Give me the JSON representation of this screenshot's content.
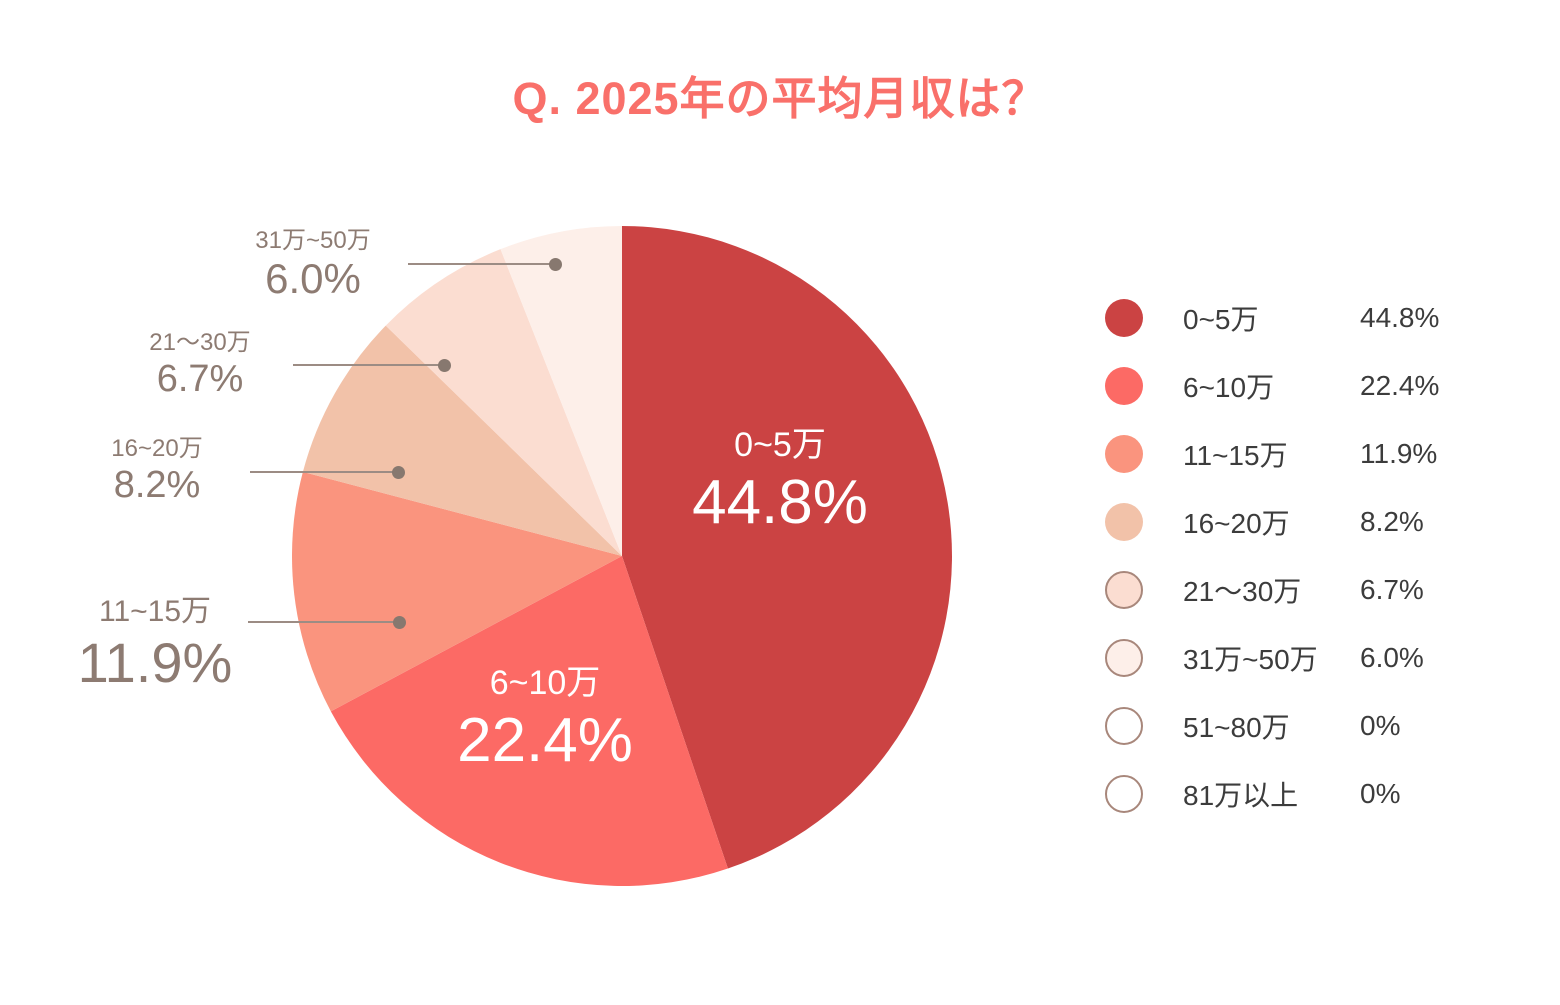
{
  "title": "Q. 2025年の平均月収は？",
  "accent_color": "#F9706A",
  "callout_text_color": "#8D7B72",
  "leader_line_color": "#9C8C84",
  "chart_data": {
    "type": "pie",
    "title": "Q. 2025年の平均月収は？",
    "start_angle_deg": 0,
    "direction": "clockwise",
    "legend_position": "right",
    "series": [
      {
        "label": "0~5万",
        "value": 44.8,
        "pct_text": "44.8%",
        "color": "#CB4343",
        "label_placement": "inside"
      },
      {
        "label": "6~10万",
        "value": 22.4,
        "pct_text": "22.4%",
        "color": "#FC6A65",
        "label_placement": "inside"
      },
      {
        "label": "11~15万",
        "value": 11.9,
        "pct_text": "11.9%",
        "color": "#FA947E",
        "label_placement": "outside"
      },
      {
        "label": "16~20万",
        "value": 8.2,
        "pct_text": "8.2%",
        "color": "#F2C2A9",
        "label_placement": "outside"
      },
      {
        "label": "21〜30万",
        "value": 6.7,
        "pct_text": "6.7%",
        "color": "#FBDDD1",
        "label_placement": "outside"
      },
      {
        "label": "31万~50万",
        "value": 6.0,
        "pct_text": "6.0%",
        "color": "#FDEFE9",
        "label_placement": "outside"
      },
      {
        "label": "51~80万",
        "value": 0,
        "pct_text": "0%",
        "color": "#FFFFFF",
        "label_placement": "none"
      },
      {
        "label": "81万以上",
        "value": 0,
        "pct_text": "0%",
        "color": "#FFFFFF",
        "label_placement": "none"
      }
    ],
    "legend": {
      "items": [
        {
          "label": "0~5万",
          "value_text": "44.8%",
          "swatch_fill": "#CB4343",
          "swatch_border": ""
        },
        {
          "label": "6~10万",
          "value_text": "22.4%",
          "swatch_fill": "#FC6A65",
          "swatch_border": ""
        },
        {
          "label": "11~15万",
          "value_text": "11.9%",
          "swatch_fill": "#FA947E",
          "swatch_border": ""
        },
        {
          "label": "16~20万",
          "value_text": "8.2%",
          "swatch_fill": "#F2C2A9",
          "swatch_border": ""
        },
        {
          "label": "21〜30万",
          "value_text": "6.7%",
          "swatch_fill": "#FBDDD1",
          "swatch_border": "#A8877B"
        },
        {
          "label": "31万~50万",
          "value_text": "6.0%",
          "swatch_fill": "#FDEFE9",
          "swatch_border": "#A8877B"
        },
        {
          "label": "51~80万",
          "value_text": "0%",
          "swatch_fill": "#FFFFFF",
          "swatch_border": "#A8877B"
        },
        {
          "label": "81万以上",
          "value_text": "0%",
          "swatch_fill": "#FFFFFF",
          "swatch_border": "#A8877B"
        }
      ]
    }
  }
}
